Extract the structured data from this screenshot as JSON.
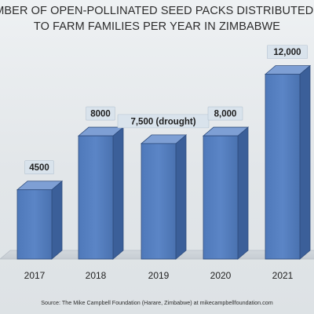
{
  "chart_data": {
    "type": "bar",
    "title_line1": "UMBER OF OPEN-POLLINATED SEED PACKS DISTRIBUTED",
    "title_line2": "TO FARM FAMILIES PER YEAR IN ZIMBABWE",
    "categories": [
      "2017",
      "2018",
      "2019",
      "2020",
      "2021"
    ],
    "values": [
      4500,
      8000,
      7500,
      8000,
      12000
    ],
    "data_labels": [
      "4500",
      "8000",
      "7,500 (drought)",
      "8,000",
      "12,000"
    ],
    "ylim": [
      0,
      13000
    ],
    "grid": false,
    "legend": "none",
    "bar_color": "#5b85c6",
    "source": "Source: The Mike Campbell Foundation (Harare, Zimbabwe) at mikecampbellfoundation.com"
  }
}
